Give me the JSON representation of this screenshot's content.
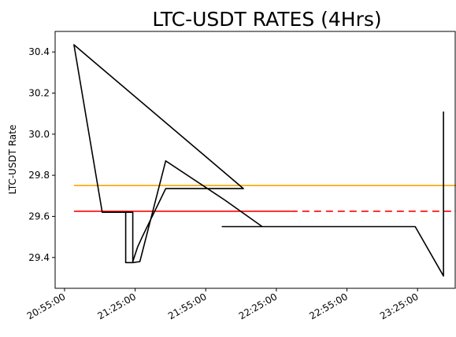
{
  "chart_data": {
    "type": "line",
    "title": "LTC-USDT RATES (4Hrs)",
    "xlabel": "",
    "ylabel": "LTC-USDT Rate",
    "ylim": [
      29.25,
      30.5
    ],
    "yticks": [
      29.4,
      29.6,
      29.8,
      30.0,
      30.2,
      30.4
    ],
    "xticks": [
      "20:55:00",
      "21:25:00",
      "21:55:00",
      "22:25:00",
      "22:55:00",
      "23:25:00"
    ],
    "xtick_minutes": [
      0,
      30,
      60,
      90,
      120,
      150
    ],
    "xlim_minutes": [
      -4,
      166
    ],
    "grid": false,
    "series": [
      {
        "color": "#000000",
        "style": "solid",
        "x_minutes": [
          4,
          16,
          19,
          29,
          29,
          31,
          33,
          43,
          43,
          47,
          59,
          74,
          76,
          76,
          4,
          16,
          26,
          26,
          29,
          32,
          43,
          68,
          84,
          96,
          103,
          110,
          137,
          137,
          137,
          137,
          121,
          92,
          67,
          80,
          80,
          84,
          93,
          101,
          107,
          110,
          112,
          124,
          124,
          133,
          149,
          161,
          161,
          161,
          161
        ],
        "values": [
          30.435,
          29.62,
          29.62,
          29.62,
          29.38,
          29.45,
          29.5,
          29.735,
          29.735,
          29.735,
          29.735,
          29.735,
          29.735,
          29.735,
          30.435,
          29.62,
          29.62,
          29.375,
          29.375,
          29.38,
          29.87,
          29.68,
          29.55,
          29.55,
          29.55,
          29.55,
          29.55,
          29.55,
          29.55,
          29.55,
          29.55,
          29.55,
          29.55,
          29.55,
          29.55,
          29.55,
          29.55,
          29.55,
          29.55,
          29.55,
          29.55,
          29.55,
          29.55,
          29.55,
          29.55,
          29.31,
          29.31,
          29.31,
          30.11
        ]
      }
    ],
    "hlines": [
      {
        "value": 29.75,
        "color": "#ffa500",
        "style": "solid",
        "x_from": 4,
        "x_to": 167
      },
      {
        "value": 29.625,
        "color": "#ff0000",
        "style": "solid",
        "x_from": 4,
        "x_to": 96
      },
      {
        "value": 29.625,
        "color": "#ff0000",
        "style": "dashed",
        "x_from": 96,
        "x_to": 167
      }
    ]
  }
}
